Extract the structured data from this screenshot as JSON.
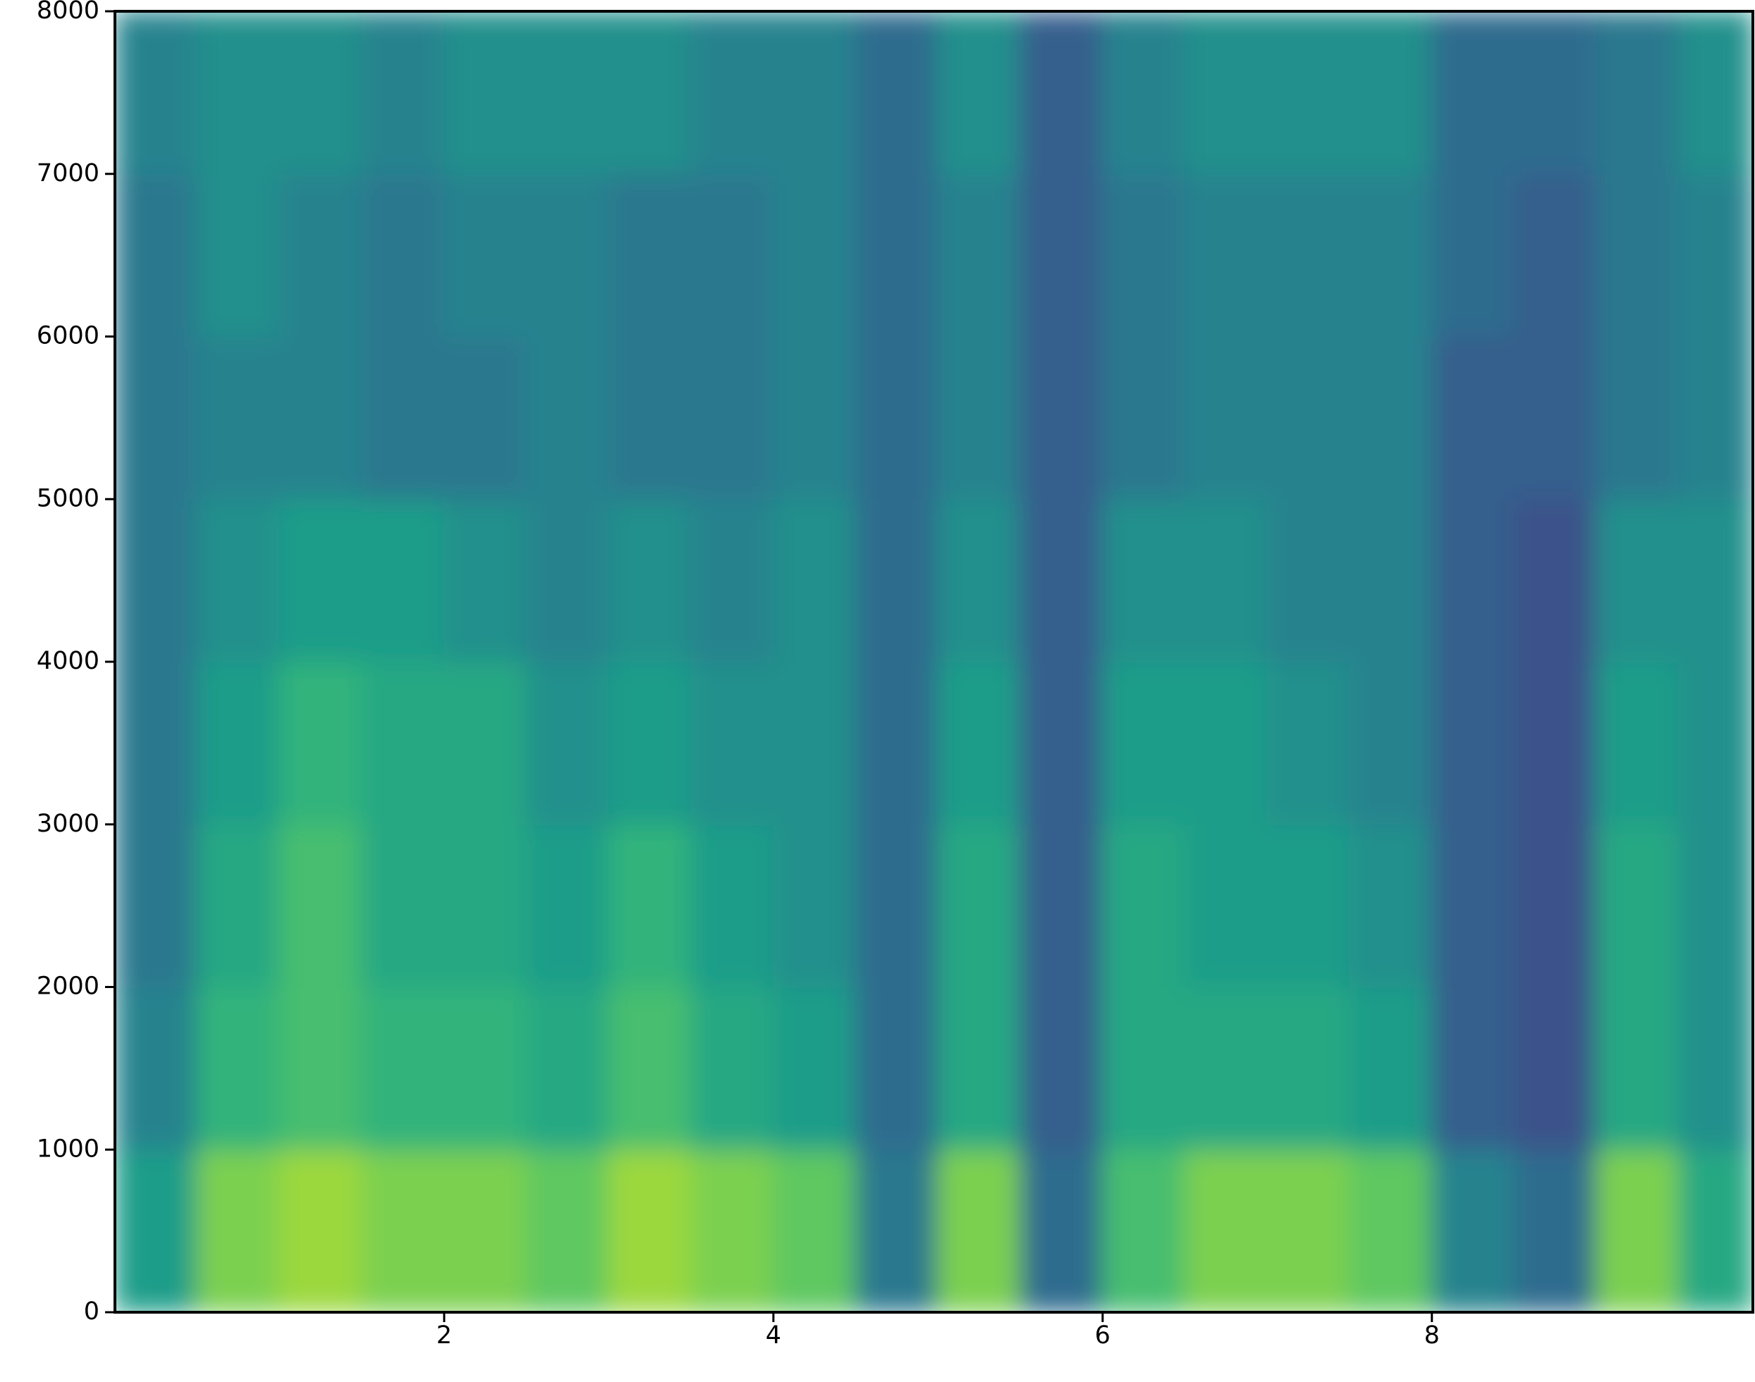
{
  "chart_data": {
    "type": "spectrogram",
    "colormap": "viridis",
    "x_edges": [
      0,
      0.5,
      1,
      1.5,
      2,
      2.5,
      3,
      3.5,
      4,
      4.5,
      5,
      5.5,
      6,
      6.5,
      7,
      7.5,
      8,
      8.5,
      9,
      9.5,
      9.95
    ],
    "y_edges": [
      0,
      1000,
      2000,
      3000,
      4000,
      5000,
      6000,
      7000,
      8000
    ],
    "values": [
      [
        0.55,
        0.8,
        0.85,
        0.8,
        0.8,
        0.75,
        0.85,
        0.8,
        0.75,
        0.4,
        0.8,
        0.35,
        0.7,
        0.8,
        0.8,
        0.75,
        0.45,
        0.35,
        0.8,
        0.6
      ],
      [
        0.45,
        0.65,
        0.7,
        0.65,
        0.65,
        0.6,
        0.7,
        0.6,
        0.55,
        0.35,
        0.6,
        0.3,
        0.6,
        0.6,
        0.6,
        0.55,
        0.3,
        0.25,
        0.6,
        0.5
      ],
      [
        0.4,
        0.6,
        0.7,
        0.6,
        0.6,
        0.55,
        0.65,
        0.55,
        0.5,
        0.35,
        0.6,
        0.3,
        0.6,
        0.55,
        0.55,
        0.5,
        0.3,
        0.25,
        0.6,
        0.5
      ],
      [
        0.4,
        0.55,
        0.65,
        0.6,
        0.6,
        0.5,
        0.55,
        0.5,
        0.5,
        0.35,
        0.55,
        0.3,
        0.55,
        0.55,
        0.5,
        0.45,
        0.3,
        0.25,
        0.55,
        0.5
      ],
      [
        0.4,
        0.5,
        0.55,
        0.55,
        0.5,
        0.45,
        0.5,
        0.45,
        0.5,
        0.35,
        0.5,
        0.3,
        0.5,
        0.5,
        0.45,
        0.45,
        0.3,
        0.25,
        0.5,
        0.5
      ],
      [
        0.4,
        0.45,
        0.45,
        0.4,
        0.4,
        0.45,
        0.4,
        0.4,
        0.45,
        0.35,
        0.45,
        0.3,
        0.4,
        0.45,
        0.45,
        0.45,
        0.3,
        0.3,
        0.4,
        0.45
      ],
      [
        0.4,
        0.5,
        0.45,
        0.4,
        0.45,
        0.45,
        0.4,
        0.4,
        0.45,
        0.35,
        0.45,
        0.3,
        0.4,
        0.45,
        0.45,
        0.45,
        0.35,
        0.3,
        0.4,
        0.45
      ],
      [
        0.45,
        0.5,
        0.5,
        0.45,
        0.5,
        0.5,
        0.5,
        0.45,
        0.45,
        0.35,
        0.5,
        0.3,
        0.45,
        0.5,
        0.5,
        0.5,
        0.35,
        0.35,
        0.4,
        0.5
      ]
    ],
    "xlim": [
      0,
      9.95
    ],
    "ylim": [
      0,
      8000
    ],
    "xticks": [
      2,
      4,
      6,
      8
    ],
    "yticks": [
      0,
      1000,
      2000,
      3000,
      4000,
      5000,
      6000,
      7000,
      8000
    ]
  }
}
